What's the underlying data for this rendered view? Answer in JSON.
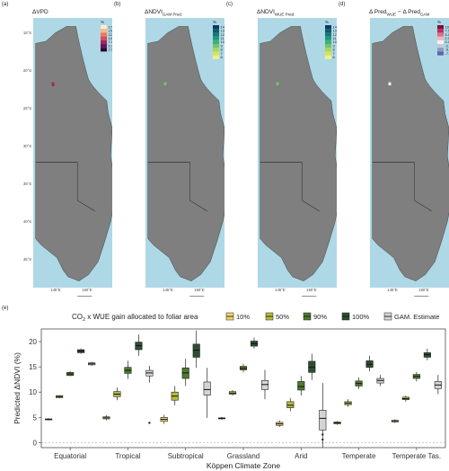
{
  "map_panels": [
    {
      "letter": "(a)",
      "title": "ΔVPD",
      "legend_unit": "%",
      "legend_ticks": [
        "17.5",
        "15.0",
        "12.5",
        "10.0",
        "7.5",
        "5.0",
        "2.5"
      ],
      "legend_colors": [
        "#fde9d4",
        "#f9b68b",
        "#f07a5a",
        "#d94a55",
        "#a0285f",
        "#6b165a",
        "#2a0a2e"
      ],
      "lon_ticks": [
        "145°E",
        "150°E"
      ],
      "lat_ticks": [
        "15°S",
        "20°S",
        "25°S",
        "30°S",
        "35°S",
        "40°S",
        "45°S"
      ],
      "theme": "vpd"
    },
    {
      "letter": "(b)",
      "title": "ΔNDVI",
      "title_sub": "GAM Pred.",
      "legend_unit": "%",
      "legend_ticks": [
        "14",
        "13",
        "12",
        "11",
        "10",
        "9",
        "8",
        "7",
        "6"
      ],
      "legend_colors": [
        "#0b3c5d",
        "#0e5a6e",
        "#17787a",
        "#239680",
        "#3eb07c",
        "#74c46a",
        "#a7d65c",
        "#d3e35d",
        "#f2ef8a"
      ],
      "lon_ticks": [
        "145°E",
        "150°E"
      ],
      "theme": "gam"
    },
    {
      "letter": "(c)",
      "title": "ΔNDVI",
      "title_sub": "WUE Pred.",
      "legend_unit": "%",
      "legend_ticks": [
        "14",
        "13",
        "12",
        "11",
        "10",
        "9",
        "8",
        "7",
        "6"
      ],
      "legend_colors": [
        "#0b3c5d",
        "#0e5a6e",
        "#17787a",
        "#239680",
        "#3eb07c",
        "#74c46a",
        "#a7d65c",
        "#d3e35d",
        "#f2ef8a"
      ],
      "lon_ticks": [
        "145°E",
        "150°E"
      ],
      "theme": "wue"
    },
    {
      "letter": "(d)",
      "title": "Δ Pred",
      "title_sub": "WUE",
      "title_mid": " − Δ Pred",
      "title_sub2": "GAM",
      "legend_unit": "%",
      "legend_ticks": [
        "10.0",
        "7.5",
        "5.0",
        "2.5",
        "0.0",
        "-2.5",
        "-5.0",
        "-7.5"
      ],
      "legend_colors": [
        "#7a0f3a",
        "#b8325a",
        "#dd6f86",
        "#f0b4bf",
        "#f2f2f2",
        "#c2c7dd",
        "#8f98c4",
        "#5b66a6"
      ],
      "lon_ticks": [
        "145°E",
        "150°E"
      ],
      "theme": "diff"
    }
  ],
  "panel_e_letter": "(e)",
  "chart_data": {
    "type": "boxplot",
    "legend_title_parts": [
      "CO",
      "2",
      " x WUE gain allocated to foliar area"
    ],
    "legend_entries": [
      "10%",
      "50%",
      "90%",
      "100%",
      "GAM. Estimate"
    ],
    "series": [
      {
        "name": "10%",
        "color": "#f2d36b"
      },
      {
        "name": "50%",
        "color": "#b6bb3a"
      },
      {
        "name": "90%",
        "color": "#4f7a2f"
      },
      {
        "name": "100%",
        "color": "#2c4f33"
      },
      {
        "name": "GAM. Estimate",
        "color": "#d4d4d4"
      }
    ],
    "categories": [
      "Equatorial",
      "Tropical",
      "Subtropical",
      "Grassland",
      "Arid",
      "Temperate",
      "Temperate Tas."
    ],
    "xlabel": "Köppen Climate Zone",
    "ylabel": "Predicted ΔNDVI (%)",
    "ylim": [
      -1,
      22.5
    ],
    "yticks": [
      0,
      5,
      10,
      15,
      20
    ],
    "boxes": [
      [
        [
          4.4,
          4.5,
          4.6,
          4.7,
          4.8
        ],
        [
          8.8,
          8.9,
          9.1,
          9.3,
          9.4
        ],
        [
          13.1,
          13.3,
          13.6,
          13.9,
          14.1
        ],
        [
          17.6,
          17.8,
          18.1,
          18.4,
          18.6
        ],
        [
          15.2,
          15.4,
          15.6,
          15.8,
          16.0
        ]
      ],
      [
        [
          4.4,
          4.7,
          4.9,
          5.1,
          5.4
        ],
        [
          8.4,
          9.1,
          9.6,
          10.1,
          10.9
        ],
        [
          12.6,
          13.7,
          14.3,
          14.9,
          16.2
        ],
        [
          17.2,
          18.4,
          19.2,
          19.9,
          21.4
        ],
        [
          11.9,
          13.2,
          13.8,
          14.3,
          15.2
        ]
      ],
      [
        [
          3.7,
          4.2,
          4.6,
          5.0,
          5.5
        ],
        [
          7.4,
          8.4,
          9.2,
          10.0,
          11.2
        ],
        [
          11.2,
          12.7,
          13.8,
          14.8,
          16.6
        ],
        [
          14.8,
          16.9,
          18.3,
          19.5,
          22.2
        ],
        [
          4.9,
          9.4,
          10.5,
          12.0,
          14.8
        ]
      ],
      [
        [
          4.5,
          4.7,
          4.8,
          4.9,
          5.1
        ],
        [
          9.3,
          9.6,
          9.8,
          10.1,
          10.4
        ],
        [
          13.9,
          14.4,
          14.7,
          15.1,
          15.6
        ],
        [
          18.6,
          19.1,
          19.6,
          20.1,
          20.8
        ],
        [
          8.6,
          10.5,
          11.5,
          12.3,
          14.4
        ]
      ],
      [
        [
          3.1,
          3.4,
          3.7,
          4.0,
          4.4
        ],
        [
          6.2,
          6.9,
          7.4,
          8.1,
          8.8
        ],
        [
          9.3,
          10.4,
          11.1,
          12.1,
          13.2
        ],
        [
          12.4,
          13.9,
          14.9,
          16.1,
          17.6
        ],
        [
          -1.0,
          2.5,
          4.8,
          6.4,
          11.8
        ]
      ],
      [
        [
          3.5,
          3.7,
          3.9,
          4.1,
          4.3
        ],
        [
          7.1,
          7.5,
          7.8,
          8.1,
          8.6
        ],
        [
          10.6,
          11.2,
          11.7,
          12.2,
          12.9
        ],
        [
          14.1,
          14.9,
          15.5,
          16.2,
          17.2
        ],
        [
          11.2,
          11.8,
          12.3,
          12.7,
          13.4
        ]
      ],
      [
        [
          3.9,
          4.1,
          4.3,
          4.4,
          4.6
        ],
        [
          8.1,
          8.5,
          8.7,
          9.0,
          9.3
        ],
        [
          12.1,
          12.7,
          13.1,
          13.5,
          14.0
        ],
        [
          16.3,
          16.9,
          17.4,
          17.8,
          18.6
        ],
        [
          9.6,
          10.7,
          11.4,
          12.1,
          13.4
        ]
      ]
    ],
    "outliers": [
      [
        4,
        [
          1.6,
          0.6
        ]
      ],
      [
        1,
        [
          3.9
        ]
      ]
    ]
  }
}
